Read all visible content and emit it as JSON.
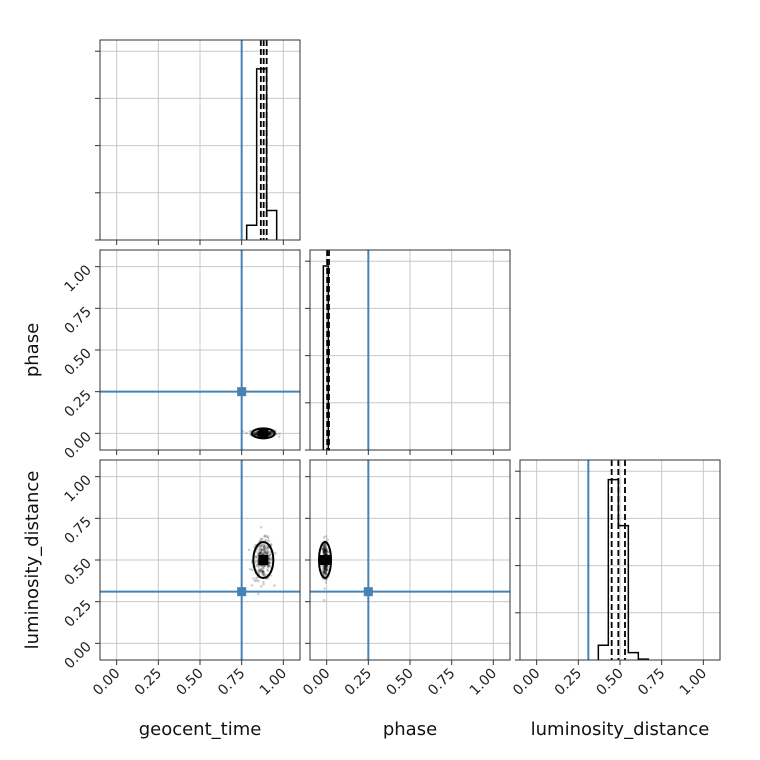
{
  "chart_data": {
    "type": "corner",
    "parameters": [
      "geocent_time",
      "phase",
      "luminosity_distance"
    ],
    "axis_range": [
      -0.1,
      1.1
    ],
    "tick_labels": [
      "0.00",
      "0.25",
      "0.50",
      "0.75",
      "1.00"
    ],
    "tick_values": [
      0.0,
      0.25,
      0.5,
      0.75,
      1.0
    ],
    "grid": true,
    "truth_color": "#4682b4",
    "hist_color": "#000000",
    "truths": {
      "geocent_time": 0.75,
      "phase": 0.25,
      "luminosity_distance": 0.31
    },
    "histograms": {
      "geocent_time": {
        "bin_edges": [
          0.78,
          0.84,
          0.9,
          0.96
        ],
        "heights": [
          0.08,
          0.93,
          0.16
        ],
        "quantiles": [
          0.865,
          0.882,
          0.9
        ]
      },
      "phase": {
        "bin_edges": [
          -0.02,
          0.01,
          0.02
        ],
        "heights": [
          1.0,
          0.0
        ],
        "quantiles": [
          0.003,
          0.014
        ]
      },
      "luminosity_distance": {
        "bin_edges": [
          0.37,
          0.43,
          0.49,
          0.55,
          0.61,
          0.67
        ],
        "heights": [
          0.08,
          0.98,
          0.73,
          0.04,
          0.005
        ],
        "quantiles": [
          0.45,
          0.49,
          0.53
        ]
      }
    },
    "posterior_2d": {
      "phase_vs_geocent_time": {
        "center": [
          0.88,
          0.0
        ],
        "spread": [
          0.035,
          0.01
        ]
      },
      "luminosity_distance_vs_geocent_time": {
        "center": [
          0.88,
          0.5
        ],
        "spread": [
          0.03,
          0.06
        ]
      },
      "luminosity_distance_vs_phase": {
        "center": [
          -0.01,
          0.5
        ],
        "spread": [
          0.008,
          0.06
        ]
      }
    }
  }
}
